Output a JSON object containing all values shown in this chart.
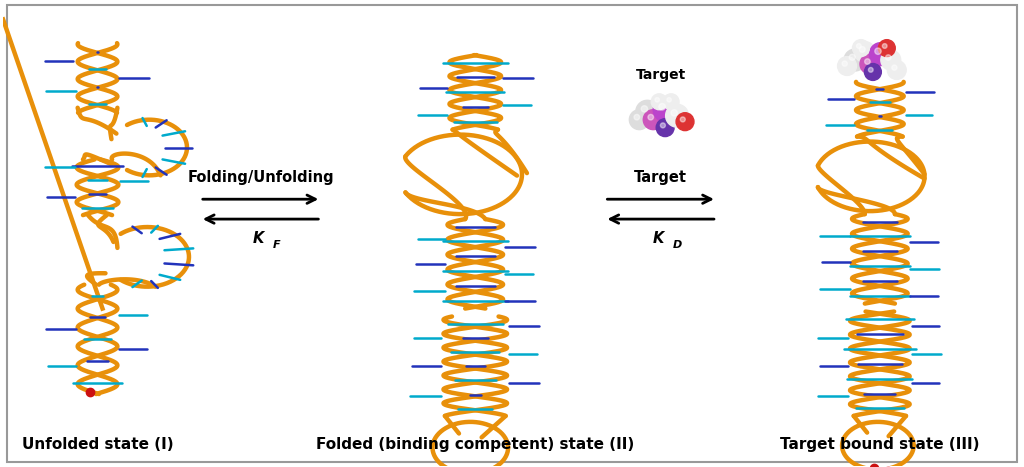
{
  "bg_color": "#ffffff",
  "border_color": "#999999",
  "title_state1": "Unfolded state (I)",
  "title_state2": "Folded (binding competent) state (II)",
  "title_state3": "Target bound state (III)",
  "arrow1_label_top": "Folding/Unfolding",
  "arrow1_label_bot": "K",
  "arrow1_sub": "F",
  "arrow2_label_top": "Target",
  "arrow2_label_bot": "K",
  "arrow2_sub": "D",
  "helix_color": "#E8900A",
  "bp_cyan": "#00AACC",
  "bp_blue": "#2233BB",
  "bp_dkblue": "#1111AA",
  "end_red": "#CC1111",
  "end_pink": "#EE8888",
  "mol_white": "#E0E0E8",
  "mol_pink": "#EE44AA",
  "mol_purple": "#8822CC",
  "mol_red": "#DD2222",
  "label_fontsize": 11
}
